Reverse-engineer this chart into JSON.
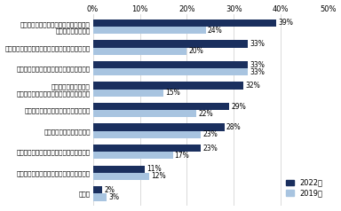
{
  "categories": [
    "年齢軸にとらわれない人事管理について\n検討しきれていない",
    "柔軟で多様な働き方について検討しきれていない",
    "人事制度改革について検討しきれていない",
    "役職定年などの影響で\nミドル・シニアのモチベーションが下がる",
    "賃金体系の見直しに取り組めていない",
    "人件費などのコストが嵩む",
    "年功序列により「ぶら下がり社員」の出現",
    "能力開発支援について検討しきれていない",
    "その他"
  ],
  "values_2022": [
    39,
    33,
    33,
    32,
    29,
    28,
    23,
    11,
    2
  ],
  "values_2019": [
    24,
    20,
    33,
    15,
    22,
    23,
    17,
    12,
    3
  ],
  "color_2022": "#1a2f5e",
  "color_2019": "#a8c4e0",
  "xlim": [
    0,
    50
  ],
  "xticks": [
    0,
    10,
    20,
    30,
    40,
    50
  ],
  "legend_2022": "2022年",
  "legend_2019": "2019年",
  "bar_height": 0.35,
  "label_fontsize": 5.2,
  "value_fontsize": 5.5,
  "tick_fontsize": 6.0
}
